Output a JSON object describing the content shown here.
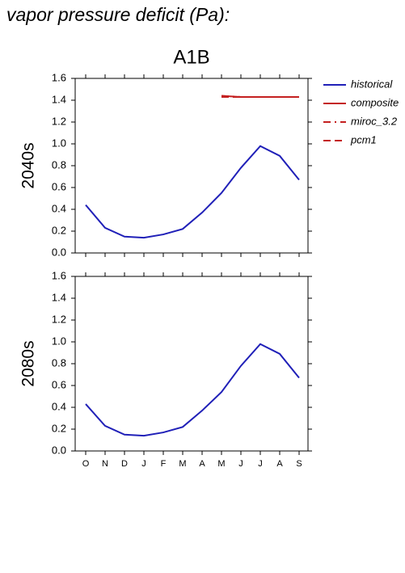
{
  "title": "vapor pressure deficit (Pa):",
  "chart_data": [
    {
      "type": "line",
      "title": "A1B",
      "ylabel": "2040s",
      "ylim": [
        0,
        1.6
      ],
      "yticks": [
        {
          "value": 0,
          "label": "0.0"
        },
        0.2,
        0.4,
        0.6,
        0.8,
        {
          "value": 1,
          "label": "1.0"
        },
        1.2,
        1.4,
        1.6
      ],
      "legend": "outside-right",
      "series": [
        {
          "name": "historical",
          "color": "#2020b8",
          "linestyle": "solid",
          "values": [
            0.44,
            0.23,
            0.15,
            0.14,
            0.17,
            0.22,
            0.37,
            0.55,
            0.78,
            0.98,
            0.89,
            0.67
          ]
        },
        {
          "name": "composite",
          "color": "#c42020",
          "linestyle": "solid",
          "values": [
            null,
            null,
            null,
            null,
            null,
            null,
            null,
            1.44,
            1.43,
            1.43,
            1.43,
            1.43
          ]
        },
        {
          "name": "miroc_3.2",
          "color": "#c42020",
          "linestyle": "dashdot",
          "values": [
            null,
            null,
            null,
            null,
            null,
            null,
            null,
            1.44,
            1.43,
            1.43,
            1.43,
            1.43
          ]
        },
        {
          "name": "pcm1",
          "color": "#c42020",
          "linestyle": "dashed",
          "values": [
            null,
            null,
            null,
            null,
            null,
            null,
            null,
            1.43,
            1.43,
            1.43,
            1.43,
            1.43
          ]
        }
      ]
    },
    {
      "type": "line",
      "ylabel": "2080s",
      "categories": [
        "O",
        "N",
        "D",
        "J",
        "F",
        "M",
        "A",
        "M",
        "J",
        "J",
        "A",
        "S"
      ],
      "ylim": [
        0,
        1.6
      ],
      "yticks": [
        {
          "value": 0,
          "label": "0.0"
        },
        0.2,
        0.4,
        0.6,
        0.8,
        {
          "value": 1,
          "label": "1.0"
        },
        1.2,
        1.4,
        1.6
      ],
      "series": [
        {
          "color": "#2020b8",
          "linestyle": "solid",
          "values": [
            0.43,
            0.23,
            0.15,
            0.14,
            0.17,
            0.22,
            0.37,
            0.54,
            0.78,
            0.98,
            0.89,
            0.67
          ]
        }
      ]
    }
  ]
}
